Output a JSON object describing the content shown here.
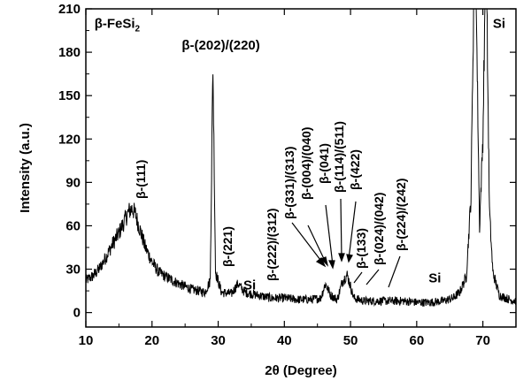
{
  "chart_data": {
    "type": "line",
    "title": "",
    "xlabel": "2θ (Degree)",
    "ylabel": "Intensity (a.u.)",
    "xlim": [
      10,
      75
    ],
    "ylim": [
      -10,
      210
    ],
    "x_ticks": [
      10,
      20,
      30,
      40,
      50,
      60,
      70
    ],
    "y_ticks": [
      0,
      30,
      60,
      90,
      120,
      150,
      180,
      210
    ],
    "grid": false,
    "legend": "none",
    "line_color": "#000000",
    "series": [
      {
        "x": [
          10,
          11,
          12,
          13,
          14,
          15,
          16,
          16.5,
          17,
          17.5,
          18,
          19,
          20,
          21,
          22,
          24,
          26,
          28,
          28.8,
          29.2,
          29.6,
          30.5,
          32,
          33,
          34,
          36,
          38,
          40,
          42,
          44,
          45.5,
          46.2,
          47,
          48,
          48.8,
          49.5,
          50.5,
          52,
          54,
          56,
          58,
          60,
          62,
          64,
          65.5,
          66.5,
          67.5,
          68.2,
          68.6,
          69,
          69.5,
          70,
          70.3,
          70.6,
          71,
          71.5,
          72.5,
          74,
          75
        ],
        "y": [
          22,
          25,
          30,
          38,
          47,
          55,
          65,
          70,
          72,
          68,
          60,
          45,
          35,
          28,
          25,
          20,
          16,
          14,
          22,
          172,
          28,
          14,
          13,
          20,
          14,
          12,
          10,
          10,
          9,
          9,
          10,
          20,
          12,
          9,
          22,
          26,
          10,
          8,
          8,
          8,
          8,
          7,
          7,
          8,
          10,
          14,
          25,
          80,
          210,
          210,
          60,
          120,
          210,
          210,
          70,
          28,
          12,
          9,
          8
        ]
      }
    ],
    "annotations": [
      {
        "text": "β-FeSi",
        "sub": "2",
        "x": 11.3,
        "y": 197
      },
      {
        "text": "β-(202)/(220)",
        "x": 24.5,
        "y": 182
      },
      {
        "text": "Si",
        "x": 71.5,
        "y": 197
      },
      {
        "text": "Si",
        "x": 61.8,
        "y": 21
      },
      {
        "text": "Si",
        "x": 33.8,
        "y": 16
      }
    ],
    "peak_labels": [
      "β-(111)",
      "β-(221)",
      "β-(222)/(312)",
      "β-(331)/(313)",
      "β-(004)/(040)",
      "β-(041)",
      "β-(114)/(511)",
      "β-(422)",
      "β-(133)",
      "β-(024)/(042)",
      "β-(224)/(242)"
    ]
  }
}
